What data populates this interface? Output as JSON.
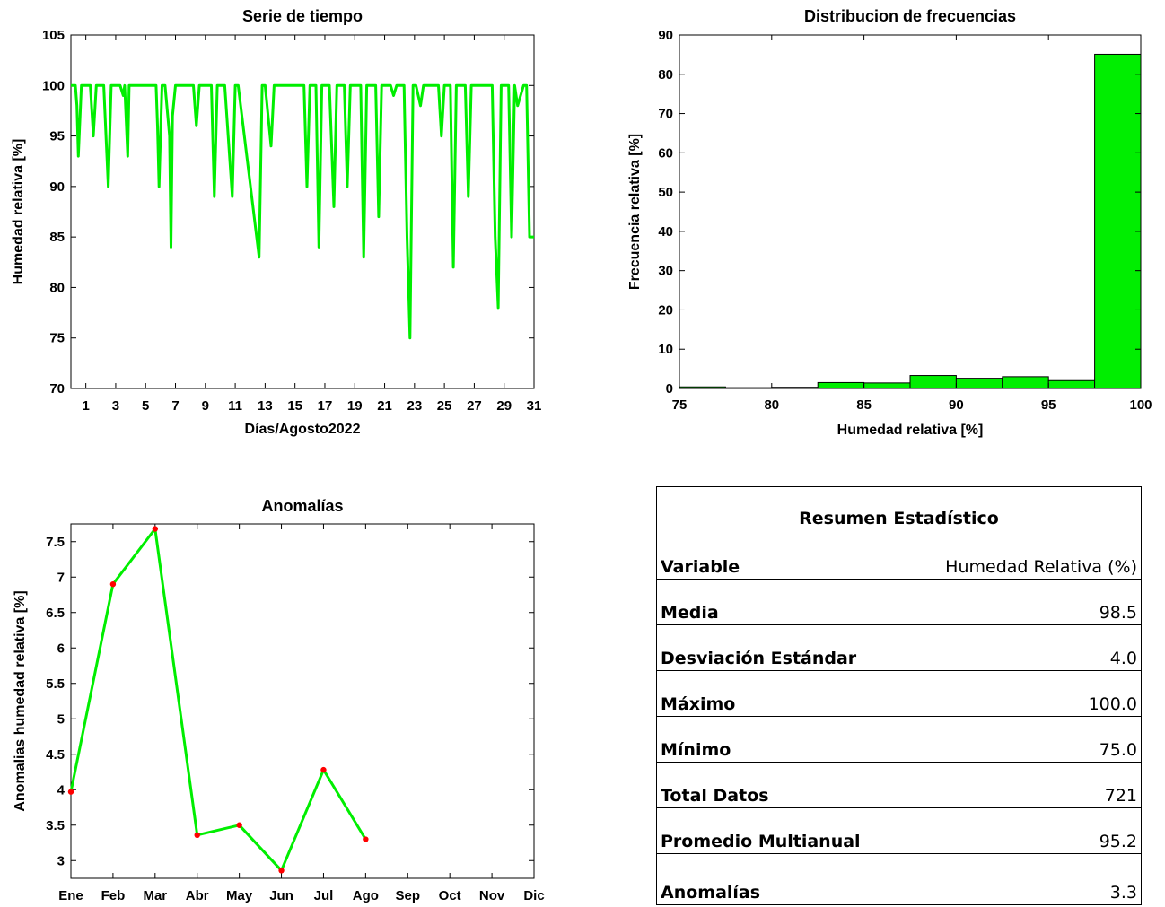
{
  "chart_data": [
    {
      "type": "line",
      "title": "Serie de tiempo",
      "xlabel": "Días/Agosto2022",
      "ylabel": "Humedad relativa [%]",
      "xlim": [
        0,
        31
      ],
      "ylim": [
        70,
        105
      ],
      "x_ticks": [
        1,
        3,
        5,
        7,
        9,
        11,
        13,
        15,
        17,
        19,
        21,
        23,
        25,
        27,
        29,
        31
      ],
      "y_ticks": [
        70,
        75,
        80,
        85,
        90,
        95,
        100,
        105
      ],
      "grid": false,
      "series": [
        {
          "color": "#00ee00",
          "x": [
            0.0,
            0.3,
            0.4,
            0.5,
            0.7,
            1.3,
            1.5,
            1.7,
            2.2,
            2.5,
            2.7,
            3.3,
            3.5,
            3.6,
            3.8,
            3.9,
            4.1,
            5.7,
            5.8,
            5.9,
            6.1,
            6.3,
            6.6,
            6.7,
            6.8,
            7.0,
            8.2,
            8.4,
            8.6,
            9.4,
            9.6,
            9.8,
            10.3,
            10.8,
            11.0,
            11.2,
            12.6,
            12.8,
            13.0,
            13.4,
            13.6,
            13.8,
            15.6,
            15.8,
            16.0,
            16.4,
            16.6,
            16.8,
            17.3,
            17.6,
            17.8,
            18.3,
            18.5,
            18.7,
            19.4,
            19.6,
            19.8,
            20.4,
            20.6,
            20.8,
            21.4,
            21.6,
            21.8,
            22.3,
            22.5,
            22.6,
            22.7,
            22.9,
            23.1,
            23.4,
            23.6,
            23.8,
            24.6,
            24.8,
            25.0,
            25.4,
            25.6,
            25.8,
            26.4,
            26.6,
            26.8,
            28.2,
            28.4,
            28.6,
            28.8,
            29.3,
            29.5,
            29.7,
            29.9,
            30.3,
            30.5,
            30.7,
            31.0
          ],
          "y": [
            100,
            100,
            98,
            93,
            100,
            100,
            95,
            100,
            100,
            90,
            100,
            100,
            99,
            100,
            93,
            100,
            100,
            100,
            96,
            90,
            100,
            100,
            95,
            84,
            97,
            100,
            100,
            96,
            100,
            100,
            89,
            100,
            100,
            89,
            100,
            100,
            83,
            100,
            100,
            94,
            100,
            100,
            100,
            90,
            100,
            100,
            84,
            100,
            100,
            88,
            100,
            100,
            90,
            100,
            100,
            83,
            100,
            100,
            87,
            100,
            100,
            99,
            100,
            100,
            85,
            80,
            75,
            100,
            100,
            98,
            100,
            100,
            100,
            95,
            100,
            100,
            82,
            100,
            100,
            89,
            100,
            100,
            85,
            78,
            100,
            100,
            85,
            100,
            98,
            100,
            100,
            85,
            85
          ]
        }
      ]
    },
    {
      "type": "bar",
      "title": "Distribucion de frecuencias",
      "xlabel": "Humedad relativa [%]",
      "ylabel": "Frecuencia relativa [%]",
      "xlim": [
        75,
        100
      ],
      "ylim": [
        0,
        90
      ],
      "x_ticks": [
        75,
        80,
        85,
        90,
        95,
        100
      ],
      "y_ticks": [
        0,
        10,
        20,
        30,
        40,
        50,
        60,
        70,
        80,
        90
      ],
      "grid": false,
      "bar_color": "#00ee00",
      "bin_edges": [
        75,
        77.5,
        80,
        82.5,
        85,
        87.5,
        90,
        92.5,
        95,
        97.5,
        100
      ],
      "values": [
        0.4,
        0.2,
        0.3,
        1.5,
        1.4,
        3.3,
        2.6,
        3.0,
        2.0,
        85.1
      ]
    },
    {
      "type": "line",
      "title": "Anomalías",
      "ylabel": "Anomalias humedad relativa [%]",
      "xlabel": "",
      "categories": [
        "Ene",
        "Feb",
        "Mar",
        "Abr",
        "May",
        "Jun",
        "Jul",
        "Ago",
        "Sep",
        "Oct",
        "Nov",
        "Dic"
      ],
      "ylim": [
        2.75,
        7.75
      ],
      "y_ticks": [
        3,
        3.5,
        4,
        4.5,
        5,
        5.5,
        6,
        6.5,
        7,
        7.5
      ],
      "grid": false,
      "series": [
        {
          "color": "#00ee00",
          "marker_color": "#ff0000",
          "values": [
            3.97,
            6.9,
            7.68,
            3.36,
            3.5,
            2.86,
            4.28,
            3.3,
            null,
            null,
            null,
            null
          ]
        }
      ]
    }
  ],
  "stats": {
    "title": "Resumen Estadístico",
    "rows": [
      {
        "label": "Variable",
        "value": "Humedad Relativa (%)",
        "bold_label": true
      },
      {
        "label": "Media",
        "value": "98.5"
      },
      {
        "label": "Desviación Estándar",
        "value": "4.0"
      },
      {
        "label": "Máximo",
        "value": "100.0"
      },
      {
        "label": "Mínimo",
        "value": "75.0"
      },
      {
        "label": "Total Datos",
        "value": "721"
      },
      {
        "label": "Promedio Multianual",
        "value": "95.2"
      },
      {
        "label": "Anomalías",
        "value": "3.3"
      }
    ]
  }
}
